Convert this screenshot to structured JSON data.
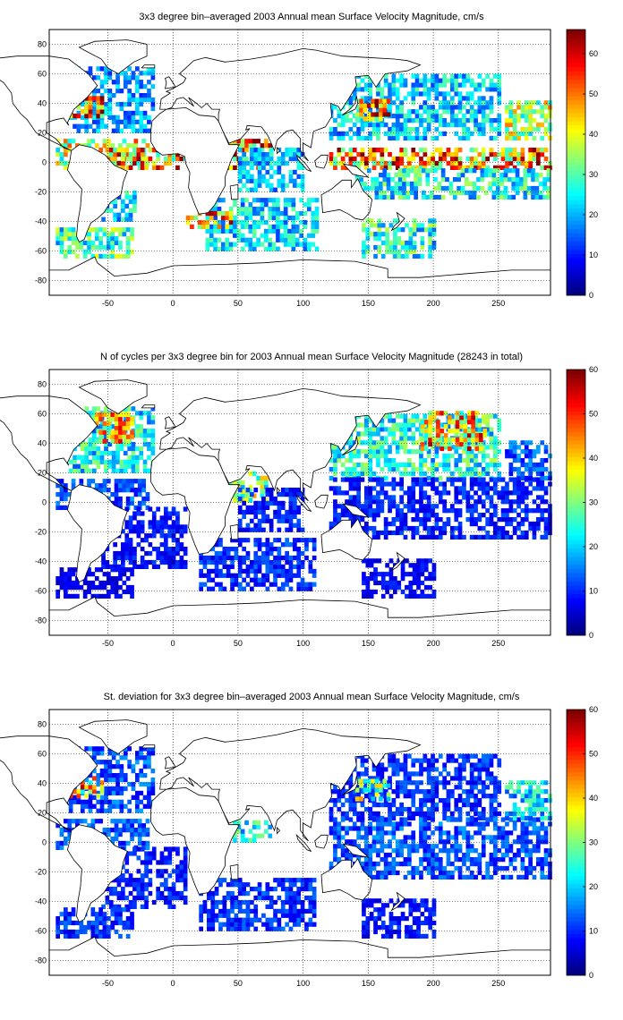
{
  "chart_data": [
    {
      "type": "heatmap",
      "title": "3x3 degree bin–averaged 2003 Annual mean Surface Velocity Magnitude, cm/s",
      "xlim": [
        -95,
        290
      ],
      "ylim": [
        -90,
        90
      ],
      "xticks": [
        -50,
        0,
        50,
        100,
        150,
        200,
        250
      ],
      "yticks": [
        -80,
        -60,
        -40,
        -20,
        0,
        20,
        40,
        60,
        80
      ],
      "colorbar": {
        "range": [
          0,
          66
        ],
        "ticks": [
          0,
          10,
          20,
          30,
          40,
          50,
          60
        ]
      },
      "colormap": "jet",
      "grid": true,
      "regions": [
        {
          "x": [
            -80,
            -15
          ],
          "y": [
            20,
            65
          ],
          "level": 18
        },
        {
          "x": [
            -80,
            -55
          ],
          "y": [
            30,
            45
          ],
          "level": 55
        },
        {
          "x": [
            -90,
            -20
          ],
          "y": [
            -5,
            15
          ],
          "level": 38
        },
        {
          "x": [
            -55,
            10
          ],
          "y": [
            -5,
            8
          ],
          "level": 45
        },
        {
          "x": [
            -55,
            -30
          ],
          "y": [
            -40,
            -20
          ],
          "level": 22
        },
        {
          "x": [
            -90,
            -30
          ],
          "y": [
            -65,
            -45
          ],
          "level": 28
        },
        {
          "x": [
            40,
            75
          ],
          "y": [
            -5,
            15
          ],
          "level": 52
        },
        {
          "x": [
            25,
            110
          ],
          "y": [
            -60,
            -25
          ],
          "level": 22
        },
        {
          "x": [
            10,
            45
          ],
          "y": [
            -45,
            -35
          ],
          "level": 50
        },
        {
          "x": [
            50,
            100
          ],
          "y": [
            -20,
            10
          ],
          "level": 20
        },
        {
          "x": [
            120,
            250
          ],
          "y": [
            15,
            60
          ],
          "level": 22
        },
        {
          "x": [
            140,
            165
          ],
          "y": [
            28,
            42
          ],
          "level": 52
        },
        {
          "x": [
            120,
            290
          ],
          "y": [
            -5,
            10
          ],
          "level": 48
        },
        {
          "x": [
            140,
            290
          ],
          "y": [
            -25,
            -5
          ],
          "level": 25
        },
        {
          "x": [
            145,
            200
          ],
          "y": [
            -65,
            -40
          ],
          "level": 26
        },
        {
          "x": [
            255,
            290
          ],
          "y": [
            15,
            40
          ],
          "level": 35
        }
      ]
    },
    {
      "type": "heatmap",
      "title": "N of cycles per 3x3 degree bin for 2003 Annual mean Surface Velocity Magnitude (28243 in total)",
      "xlim": [
        -95,
        290
      ],
      "ylim": [
        -90,
        90
      ],
      "xticks": [
        -50,
        0,
        50,
        100,
        150,
        200,
        250
      ],
      "yticks": [
        -80,
        -60,
        -40,
        -20,
        0,
        20,
        40,
        60,
        80
      ],
      "colorbar": {
        "range": [
          0,
          60
        ],
        "ticks": [
          0,
          10,
          20,
          30,
          40,
          50,
          60
        ]
      },
      "colormap": "jet",
      "grid": true,
      "regions": [
        {
          "x": [
            -80,
            -15
          ],
          "y": [
            20,
            65
          ],
          "level": 22
        },
        {
          "x": [
            -60,
            -30
          ],
          "y": [
            40,
            60
          ],
          "level": 38
        },
        {
          "x": [
            -90,
            -20
          ],
          "y": [
            -5,
            15
          ],
          "level": 12
        },
        {
          "x": [
            -55,
            10
          ],
          "y": [
            -45,
            -5
          ],
          "level": 8
        },
        {
          "x": [
            -90,
            -30
          ],
          "y": [
            -65,
            -45
          ],
          "level": 6
        },
        {
          "x": [
            40,
            75
          ],
          "y": [
            0,
            20
          ],
          "level": 30
        },
        {
          "x": [
            20,
            110
          ],
          "y": [
            -60,
            -25
          ],
          "level": 10
        },
        {
          "x": [
            50,
            100
          ],
          "y": [
            -20,
            10
          ],
          "level": 9
        },
        {
          "x": [
            120,
            250
          ],
          "y": [
            15,
            60
          ],
          "level": 24
        },
        {
          "x": [
            190,
            240
          ],
          "y": [
            35,
            60
          ],
          "level": 40
        },
        {
          "x": [
            120,
            290
          ],
          "y": [
            -25,
            15
          ],
          "level": 9
        },
        {
          "x": [
            145,
            200
          ],
          "y": [
            -65,
            -40
          ],
          "level": 7
        },
        {
          "x": [
            255,
            290
          ],
          "y": [
            15,
            40
          ],
          "level": 12
        }
      ]
    },
    {
      "type": "heatmap",
      "title": "St. deviation for 3x3 degree bin–averaged 2003 Annual mean Surface Velocity Magnitude, cm/s",
      "xlim": [
        -95,
        290
      ],
      "ylim": [
        -90,
        90
      ],
      "xticks": [
        -50,
        0,
        50,
        100,
        150,
        200,
        250
      ],
      "yticks": [
        -80,
        -60,
        -40,
        -20,
        0,
        20,
        40,
        60,
        80
      ],
      "colorbar": {
        "range": [
          0,
          60
        ],
        "ticks": [
          0,
          10,
          20,
          30,
          40,
          50,
          60
        ]
      },
      "colormap": "jet",
      "grid": true,
      "regions": [
        {
          "x": [
            -80,
            -15
          ],
          "y": [
            20,
            65
          ],
          "level": 12
        },
        {
          "x": [
            -80,
            -55
          ],
          "y": [
            30,
            45
          ],
          "level": 40
        },
        {
          "x": [
            -90,
            -20
          ],
          "y": [
            -5,
            15
          ],
          "level": 12
        },
        {
          "x": [
            -55,
            10
          ],
          "y": [
            -45,
            -5
          ],
          "level": 9
        },
        {
          "x": [
            -90,
            -30
          ],
          "y": [
            -65,
            -45
          ],
          "level": 10
        },
        {
          "x": [
            40,
            75
          ],
          "y": [
            0,
            15
          ],
          "level": 22
        },
        {
          "x": [
            20,
            110
          ],
          "y": [
            -60,
            -25
          ],
          "level": 10
        },
        {
          "x": [
            120,
            250
          ],
          "y": [
            15,
            60
          ],
          "level": 10
        },
        {
          "x": [
            140,
            165
          ],
          "y": [
            28,
            42
          ],
          "level": 30
        },
        {
          "x": [
            120,
            290
          ],
          "y": [
            -25,
            15
          ],
          "level": 12
        },
        {
          "x": [
            145,
            200
          ],
          "y": [
            -65,
            -40
          ],
          "level": 8
        },
        {
          "x": [
            255,
            290
          ],
          "y": [
            15,
            40
          ],
          "level": 20
        }
      ]
    }
  ]
}
